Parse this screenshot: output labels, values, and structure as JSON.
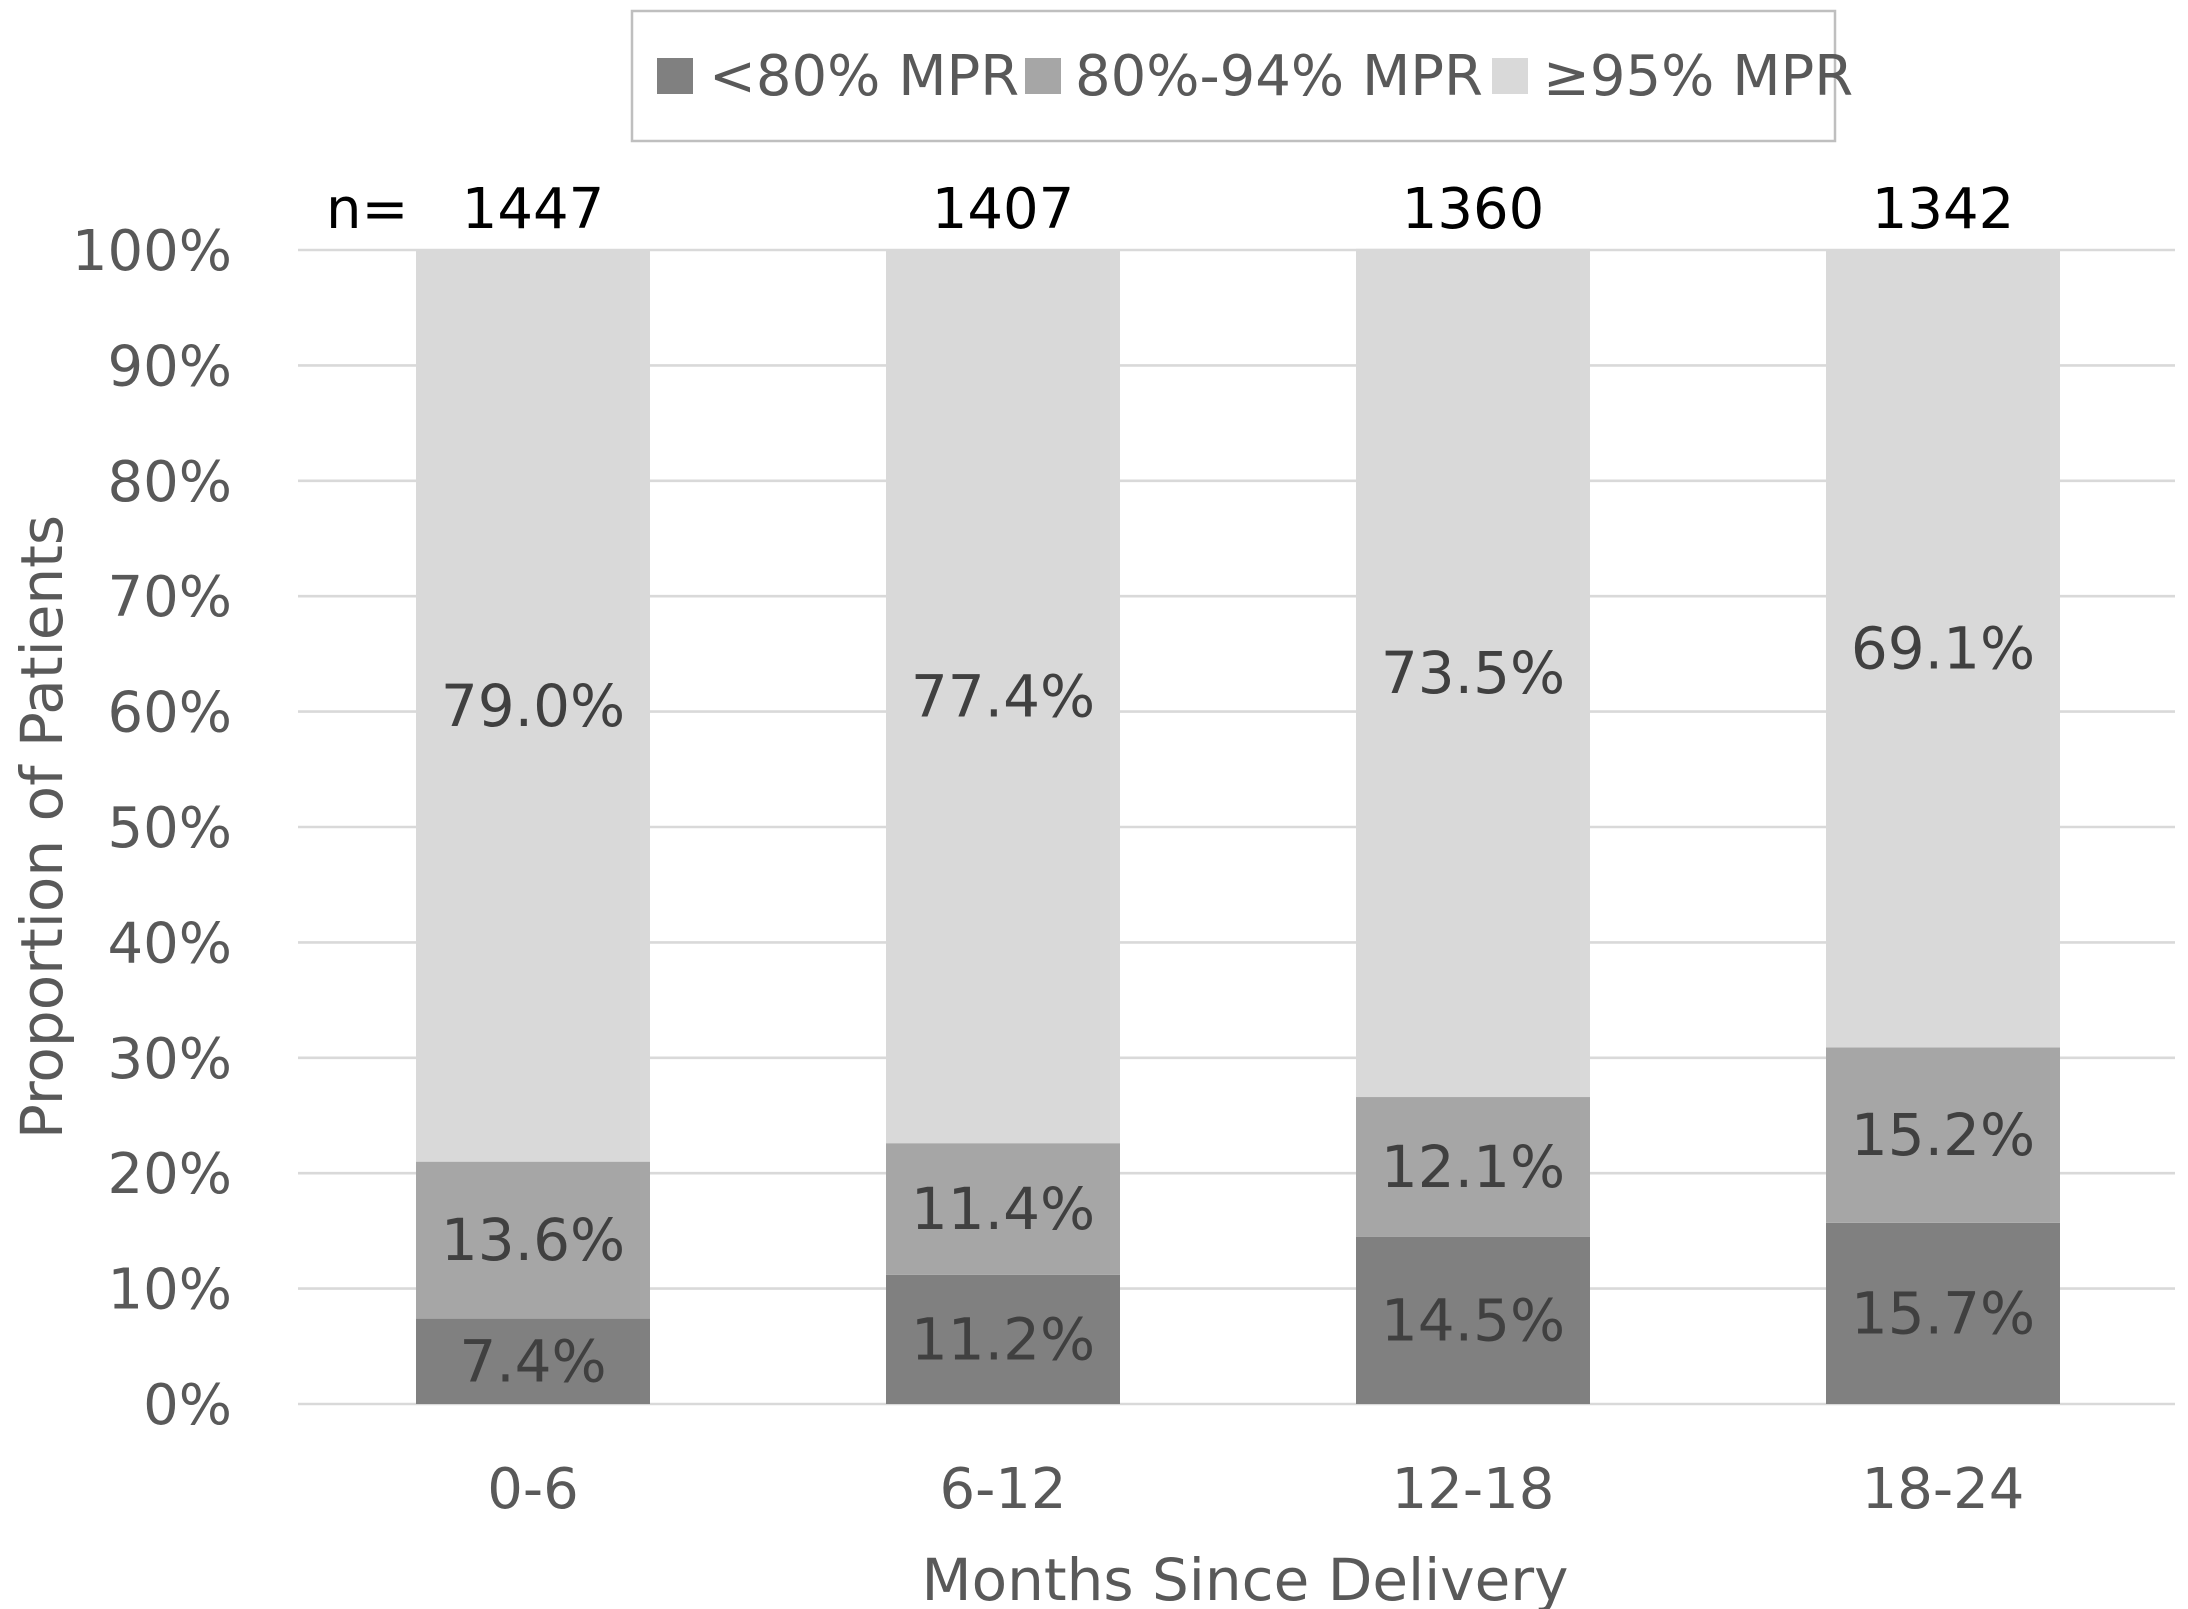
{
  "chart_data": {
    "type": "bar",
    "stacked": true,
    "categories": [
      "0-6",
      "6-12",
      "12-18",
      "18-24"
    ],
    "series": [
      {
        "name": "<80% MPR",
        "values": [
          7.4,
          11.2,
          14.5,
          15.7
        ],
        "labels": [
          "7.4%",
          "11.2%",
          "14.5%",
          "15.7%"
        ],
        "color": "#808080"
      },
      {
        "name": "80%-94% MPR",
        "values": [
          13.6,
          11.4,
          12.1,
          15.2
        ],
        "labels": [
          "13.6%",
          "11.4%",
          "12.1%",
          "15.2%"
        ],
        "color": "#a6a6a6"
      },
      {
        "name": "≥95% MPR",
        "values": [
          79.0,
          77.4,
          73.5,
          69.1
        ],
        "labels": [
          "79.0%",
          "77.4%",
          "73.5%",
          "69.1%"
        ],
        "color": "#d9d9d9"
      }
    ],
    "n_prefix": "n=",
    "n_values": [
      "1447",
      "1407",
      "1360",
      "1342"
    ],
    "xlabel": "Months Since Delivery",
    "ylabel": "Proportion of Patients",
    "ylim": [
      0,
      100
    ],
    "yticks": [
      "0%",
      "10%",
      "20%",
      "30%",
      "40%",
      "50%",
      "60%",
      "70%",
      "80%",
      "90%",
      "100%"
    ],
    "grid": true,
    "legend_position": "top-center"
  }
}
